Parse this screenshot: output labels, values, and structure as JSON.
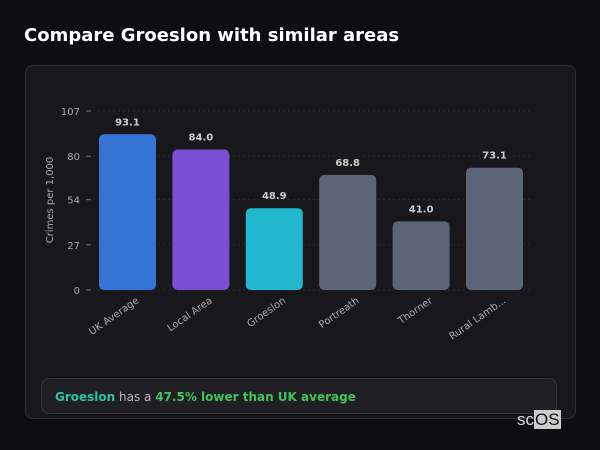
{
  "title": "Compare Groeslon with similar areas",
  "chart_data": {
    "type": "bar",
    "categories": [
      "UK Average",
      "Local Area",
      "Groeslon",
      "Portreath",
      "Thorner",
      "Rural Lamb..."
    ],
    "values": [
      93.1,
      84.0,
      48.9,
      68.8,
      41.0,
      73.1
    ],
    "colors": [
      "#3674d8",
      "#7b4fd1",
      "#20b8cf",
      "#5a6678",
      "#5a6678",
      "#5a6678"
    ],
    "ylabel": "Crimes per 1,000",
    "yticks": [
      0,
      27,
      54,
      80,
      107
    ],
    "ylim": [
      0,
      107
    ],
    "grid": true
  },
  "info": {
    "area": "Groeslon",
    "mid": " has a ",
    "highlight": "47.5% lower than UK average"
  },
  "logo": {
    "a": "sc",
    "b": "OS"
  }
}
